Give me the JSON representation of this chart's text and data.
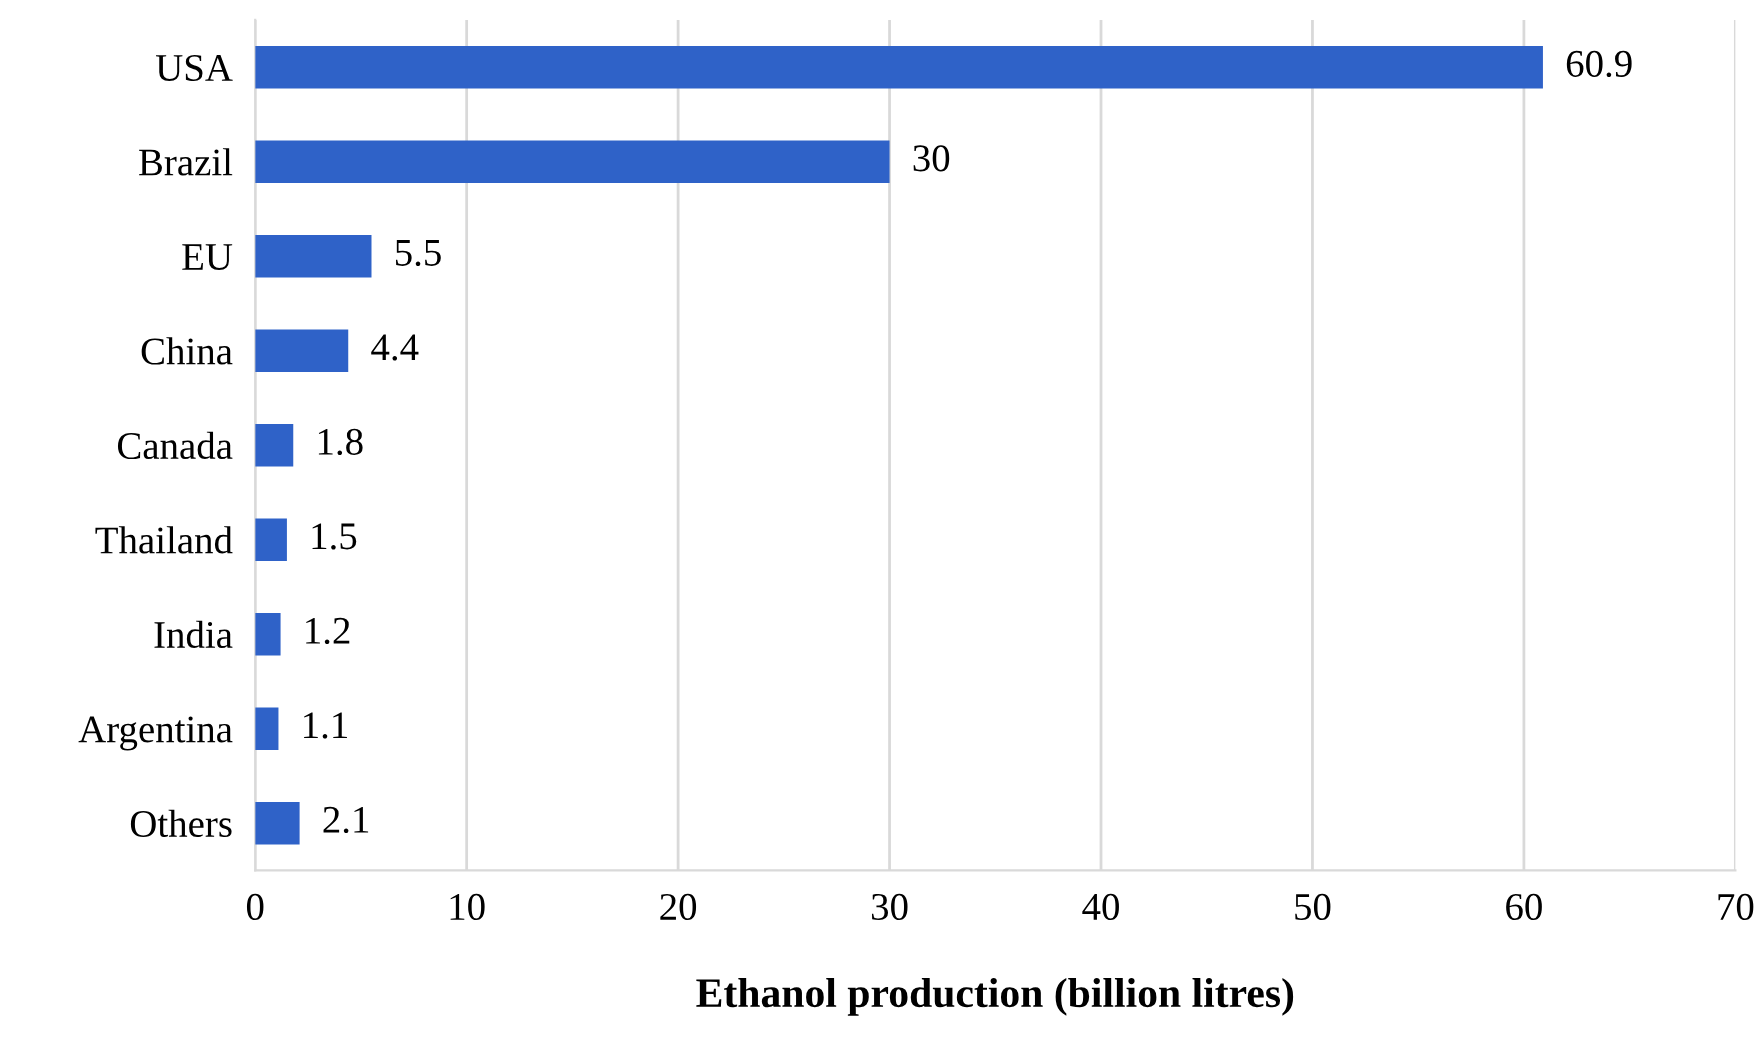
{
  "chart_data": {
    "type": "bar",
    "orientation": "horizontal",
    "xlabel": "Ethanol production (billion litres)",
    "categories": [
      "USA",
      "Brazil",
      "EU",
      "China",
      "Canada",
      "Thailand",
      "India",
      "Argentina",
      "Others"
    ],
    "values": [
      60.9,
      30,
      5.5,
      4.4,
      1.8,
      1.5,
      1.2,
      1.1,
      2.1
    ],
    "color": "#2f62c8",
    "xlim": [
      0,
      70
    ],
    "xticks": [
      0,
      10,
      20,
      30,
      40,
      50,
      60,
      70
    ],
    "grid": "x",
    "data_labels": true
  }
}
